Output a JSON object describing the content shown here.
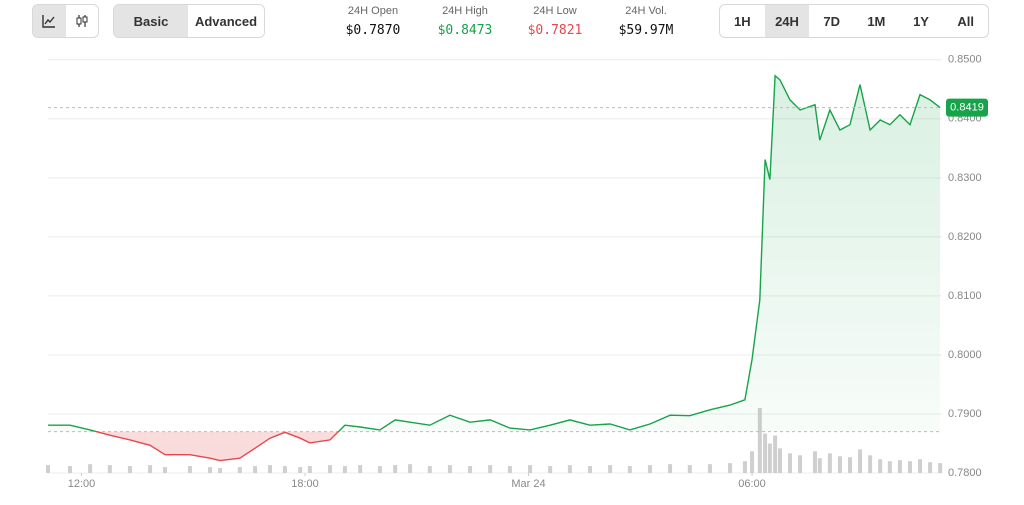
{
  "toolbar": {
    "modes": [
      "Basic",
      "Advanced"
    ],
    "ranges": [
      "1H",
      "24H",
      "7D",
      "1M",
      "1Y",
      "All"
    ],
    "active_range": "24H"
  },
  "stats": [
    {
      "label": "24H Open",
      "value": "$0.7870",
      "color": "#111111"
    },
    {
      "label": "24H High",
      "value": "$0.8473",
      "color": "#16a34a"
    },
    {
      "label": "24H Low",
      "value": "$0.7821",
      "color": "#e5484d"
    },
    {
      "label": "24H Vol.",
      "value": "$59.97M",
      "color": "#111111"
    }
  ],
  "chart_data": {
    "type": "line",
    "x": [
      11.1,
      11.69,
      12.23,
      12.76,
      13.3,
      13.84,
      14.24,
      14.91,
      15.45,
      15.72,
      16.25,
      16.66,
      17.06,
      17.46,
      17.87,
      18.13,
      18.67,
      19.07,
      19.48,
      20.01,
      20.42,
      20.82,
      21.35,
      21.89,
      22.43,
      22.97,
      23.5,
      24.04,
      24.58,
      25.11,
      25.65,
      26.19,
      26.72,
      27.26,
      27.8,
      28.33,
      28.87,
      29.41,
      29.81,
      30.0,
      30.21,
      30.35,
      30.48,
      30.62,
      30.75,
      31.02,
      31.29,
      31.69,
      31.82,
      32.09,
      32.36,
      32.63,
      32.9,
      33.17,
      33.44,
      33.7,
      33.97,
      34.24,
      34.51,
      34.78,
      35.05
    ],
    "series": [
      {
        "name": "Price",
        "color": "#16a34a",
        "down_color": "#e5484d",
        "values": [
          0.7881,
          0.7881,
          0.7873,
          0.7864,
          0.7856,
          0.7847,
          0.7831,
          0.7831,
          0.7825,
          0.7821,
          0.7825,
          0.7842,
          0.7859,
          0.7869,
          0.7859,
          0.7851,
          0.7856,
          0.7881,
          0.7878,
          0.7873,
          0.789,
          0.7886,
          0.7881,
          0.7898,
          0.7886,
          0.789,
          0.7876,
          0.7873,
          0.7881,
          0.789,
          0.7881,
          0.7883,
          0.7873,
          0.7883,
          0.7898,
          0.7897,
          0.7907,
          0.7915,
          0.7924,
          0.7992,
          0.8093,
          0.8331,
          0.8297,
          0.8473,
          0.8466,
          0.8432,
          0.8415,
          0.8424,
          0.8364,
          0.8415,
          0.8381,
          0.839,
          0.8458,
          0.8381,
          0.8398,
          0.839,
          0.8407,
          0.839,
          0.8441,
          0.8432,
          0.8419
        ]
      }
    ],
    "volume": [
      8,
      7,
      9,
      8,
      7,
      8,
      6,
      7,
      6,
      5,
      6,
      7,
      8,
      7,
      6,
      7,
      8,
      7,
      8,
      7,
      8,
      9,
      7,
      8,
      7,
      8,
      7,
      8,
      7,
      8,
      7,
      8,
      7,
      8,
      9,
      8,
      9,
      10,
      12,
      22,
      66,
      40,
      30,
      38,
      25,
      20,
      18,
      22,
      15,
      20,
      17,
      16,
      24,
      18,
      14,
      12,
      13,
      12,
      14,
      11,
      10
    ],
    "volume_color": "#cfcfcf",
    "reference_line": 0.787,
    "xlim": [
      11.1,
      35.1
    ],
    "xticks": [
      {
        "value": 12,
        "label": "12:00"
      },
      {
        "value": 18,
        "label": "18:00"
      },
      {
        "value": 24,
        "label": "Mar 24"
      },
      {
        "value": 30,
        "label": "06:00"
      }
    ],
    "ylim": [
      0.78,
      0.852
    ],
    "yticks": [
      {
        "value": 0.78,
        "label": "0.7800"
      },
      {
        "value": 0.79,
        "label": "0.7900"
      },
      {
        "value": 0.8,
        "label": "0.8000"
      },
      {
        "value": 0.81,
        "label": "0.8100"
      },
      {
        "value": 0.82,
        "label": "0.8200"
      },
      {
        "value": 0.83,
        "label": "0.8300"
      },
      {
        "value": 0.84,
        "label": "0.8400"
      },
      {
        "value": 0.85,
        "label": "0.8500"
      }
    ],
    "grid": true
  }
}
